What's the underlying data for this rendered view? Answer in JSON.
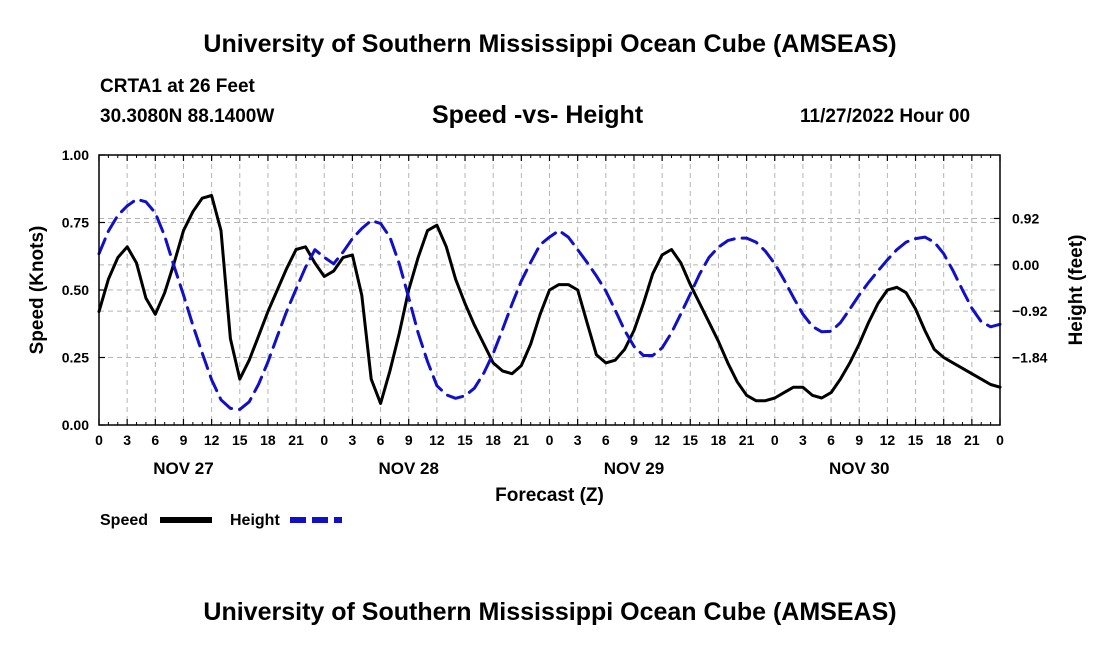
{
  "header": {
    "title": "University of Southern Mississippi Ocean Cube (AMSEAS)",
    "station": "CRTA1 at 26 Feet",
    "coords": "30.3080N  88.1400W",
    "subtitle": "Speed -vs- Height",
    "timestamp": "11/27/2022 Hour 00"
  },
  "footer": {
    "title": "University of Southern Mississippi Ocean Cube (AMSEAS)"
  },
  "chart_data": {
    "type": "line",
    "title": "Speed -vs- Height",
    "xlabel": "Forecast (Z)",
    "ylabel": "Speed (Knots)",
    "y2label": "Height (feet)",
    "xlim": [
      0,
      96
    ],
    "ylim": [
      0,
      1
    ],
    "y2lim": [
      -3.18,
      2.18
    ],
    "x_ticks": [
      0,
      3,
      6,
      9,
      12,
      15,
      18,
      21,
      24,
      27,
      30,
      33,
      36,
      39,
      42,
      45,
      48,
      51,
      54,
      57,
      60,
      63,
      66,
      69,
      72,
      75,
      78,
      81,
      84,
      87,
      90,
      93,
      96
    ],
    "x_tick_labels": [
      "0",
      "3",
      "6",
      "9",
      "12",
      "15",
      "18",
      "21",
      "0",
      "3",
      "6",
      "9",
      "12",
      "15",
      "18",
      "21",
      "0",
      "3",
      "6",
      "9",
      "12",
      "15",
      "18",
      "21",
      "0",
      "3",
      "6",
      "9",
      "12",
      "15",
      "18",
      "21",
      "0"
    ],
    "day_labels": [
      {
        "x": 9,
        "label": "NOV 27"
      },
      {
        "x": 33,
        "label": "NOV 28"
      },
      {
        "x": 57,
        "label": "NOV 29"
      },
      {
        "x": 81,
        "label": "NOV 30"
      }
    ],
    "y_ticks": [
      0,
      0.25,
      0.5,
      0.75,
      1.0
    ],
    "y_tick_labels": [
      "0.00",
      "0.25",
      "0.50",
      "0.75",
      "1.00"
    ],
    "y2_ticks": [
      0.92,
      0.0,
      -0.92,
      -1.84
    ],
    "y2_tick_labels": [
      "0.92",
      "0.00",
      "−0.92",
      "−1.84"
    ],
    "grid": true,
    "legend": [
      {
        "label": "Speed",
        "color": "#000000",
        "style": "solid"
      },
      {
        "label": "Height",
        "color": "#1010c8",
        "style": "dashed"
      }
    ],
    "series": [
      {
        "name": "Speed",
        "axis": "left",
        "color": "#000000",
        "x": [
          0,
          1,
          2,
          3,
          4,
          5,
          6,
          7,
          8,
          9,
          10,
          11,
          12,
          13,
          14,
          15,
          16,
          17,
          18,
          19,
          20,
          21,
          22,
          23,
          24,
          25,
          26,
          27,
          28,
          29,
          30,
          31,
          32,
          33,
          34,
          35,
          36,
          37,
          38,
          39,
          40,
          41,
          42,
          43,
          44,
          45,
          46,
          47,
          48,
          49,
          50,
          51,
          52,
          53,
          54,
          55,
          56,
          57,
          58,
          59,
          60,
          61,
          62,
          63,
          64,
          65,
          66,
          67,
          68,
          69,
          70,
          71,
          72,
          73,
          74,
          75,
          76,
          77,
          78,
          79,
          80,
          81,
          82,
          83,
          84,
          85,
          86,
          87,
          88,
          89,
          90,
          91,
          92,
          93,
          94,
          95,
          96
        ],
        "values": [
          0.42,
          0.54,
          0.62,
          0.66,
          0.6,
          0.47,
          0.41,
          0.49,
          0.6,
          0.72,
          0.79,
          0.84,
          0.85,
          0.72,
          0.32,
          0.17,
          0.24,
          0.33,
          0.42,
          0.5,
          0.58,
          0.65,
          0.66,
          0.6,
          0.55,
          0.57,
          0.62,
          0.63,
          0.48,
          0.17,
          0.08,
          0.2,
          0.34,
          0.5,
          0.62,
          0.72,
          0.74,
          0.66,
          0.54,
          0.45,
          0.37,
          0.3,
          0.23,
          0.2,
          0.19,
          0.22,
          0.3,
          0.41,
          0.5,
          0.52,
          0.52,
          0.5,
          0.38,
          0.26,
          0.23,
          0.24,
          0.28,
          0.35,
          0.45,
          0.56,
          0.63,
          0.65,
          0.6,
          0.52,
          0.45,
          0.38,
          0.31,
          0.23,
          0.16,
          0.11,
          0.09,
          0.09,
          0.1,
          0.12,
          0.14,
          0.14,
          0.11,
          0.1,
          0.12,
          0.17,
          0.23,
          0.3,
          0.38,
          0.45,
          0.5,
          0.51,
          0.49,
          0.43,
          0.35,
          0.28,
          0.25,
          0.23,
          0.21,
          0.19,
          0.17,
          0.15,
          0.14
        ]
      },
      {
        "name": "Height",
        "axis": "right",
        "color": "#1010c8",
        "x": [
          0,
          1,
          2,
          3,
          4,
          5,
          6,
          7,
          8,
          9,
          10,
          11,
          12,
          13,
          14,
          15,
          16,
          17,
          18,
          19,
          20,
          21,
          22,
          23,
          24,
          25,
          26,
          27,
          28,
          29,
          30,
          31,
          32,
          33,
          34,
          35,
          36,
          37,
          38,
          39,
          40,
          41,
          42,
          43,
          44,
          45,
          46,
          47,
          48,
          49,
          50,
          51,
          52,
          53,
          54,
          55,
          56,
          57,
          58,
          59,
          60,
          61,
          62,
          63,
          64,
          65,
          66,
          67,
          68,
          69,
          70,
          71,
          72,
          73,
          74,
          75,
          76,
          77,
          78,
          79,
          80,
          81,
          82,
          83,
          84,
          85,
          86,
          87,
          88,
          89,
          90,
          91,
          92,
          93,
          94,
          95,
          96
        ],
        "values": [
          0.22,
          0.67,
          0.98,
          1.17,
          1.3,
          1.25,
          1.03,
          0.57,
          -0.03,
          -0.6,
          -1.2,
          -1.75,
          -2.28,
          -2.68,
          -2.85,
          -2.87,
          -2.72,
          -2.37,
          -1.93,
          -1.42,
          -0.92,
          -0.48,
          -0.05,
          0.3,
          0.15,
          0.02,
          0.25,
          0.52,
          0.72,
          0.88,
          0.82,
          0.55,
          0.02,
          -0.65,
          -1.35,
          -1.92,
          -2.4,
          -2.58,
          -2.65,
          -2.6,
          -2.45,
          -2.15,
          -1.76,
          -1.28,
          -0.78,
          -0.32,
          0.05,
          0.4,
          0.55,
          0.68,
          0.55,
          0.3,
          0.05,
          -0.22,
          -0.52,
          -0.9,
          -1.3,
          -1.62,
          -1.8,
          -1.8,
          -1.65,
          -1.35,
          -0.97,
          -0.58,
          -0.18,
          0.15,
          0.35,
          0.48,
          0.53,
          0.53,
          0.45,
          0.27,
          0.02,
          -0.3,
          -0.65,
          -0.98,
          -1.22,
          -1.33,
          -1.32,
          -1.15,
          -0.88,
          -0.6,
          -0.35,
          -0.12,
          0.1,
          0.3,
          0.45,
          0.52,
          0.55,
          0.45,
          0.22,
          -0.12,
          -0.5,
          -0.86,
          -1.13,
          -1.23,
          -1.18
        ]
      }
    ]
  }
}
